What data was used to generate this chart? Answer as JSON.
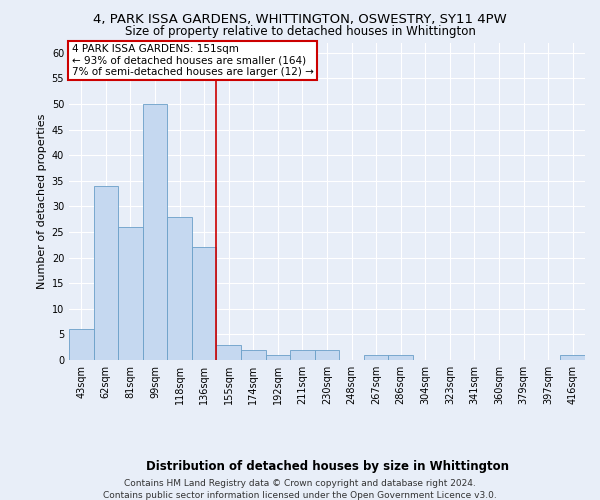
{
  "title_line1": "4, PARK ISSA GARDENS, WHITTINGTON, OSWESTRY, SY11 4PW",
  "title_line2": "Size of property relative to detached houses in Whittington",
  "xlabel": "Distribution of detached houses by size in Whittington",
  "ylabel": "Number of detached properties",
  "bin_labels": [
    "43sqm",
    "62sqm",
    "81sqm",
    "99sqm",
    "118sqm",
    "136sqm",
    "155sqm",
    "174sqm",
    "192sqm",
    "211sqm",
    "230sqm",
    "248sqm",
    "267sqm",
    "286sqm",
    "304sqm",
    "323sqm",
    "341sqm",
    "360sqm",
    "379sqm",
    "397sqm",
    "416sqm"
  ],
  "bar_values": [
    6,
    34,
    26,
    50,
    28,
    22,
    3,
    2,
    1,
    2,
    2,
    0,
    1,
    1,
    0,
    0,
    0,
    0,
    0,
    0,
    1
  ],
  "bar_color": "#c5d8f0",
  "bar_edge_color": "#6a9fc8",
  "property_line_x": 5.5,
  "annotation_text_line1": "4 PARK ISSA GARDENS: 151sqm",
  "annotation_text_line2": "← 93% of detached houses are smaller (164)",
  "annotation_text_line3": "7% of semi-detached houses are larger (12) →",
  "annotation_box_color": "#ffffff",
  "annotation_box_edge": "#cc0000",
  "vline_color": "#cc0000",
  "footer_line1": "Contains HM Land Registry data © Crown copyright and database right 2024.",
  "footer_line2": "Contains public sector information licensed under the Open Government Licence v3.0.",
  "ylim": [
    0,
    62
  ],
  "yticks": [
    0,
    5,
    10,
    15,
    20,
    25,
    30,
    35,
    40,
    45,
    50,
    55,
    60
  ],
  "bg_color": "#e8eef8",
  "grid_color": "#ffffff",
  "title1_fontsize": 9.5,
  "title2_fontsize": 8.5,
  "ylabel_fontsize": 8,
  "xlabel_fontsize": 8.5,
  "tick_fontsize": 7,
  "annot_fontsize": 7.5,
  "footer_fontsize": 6.5
}
